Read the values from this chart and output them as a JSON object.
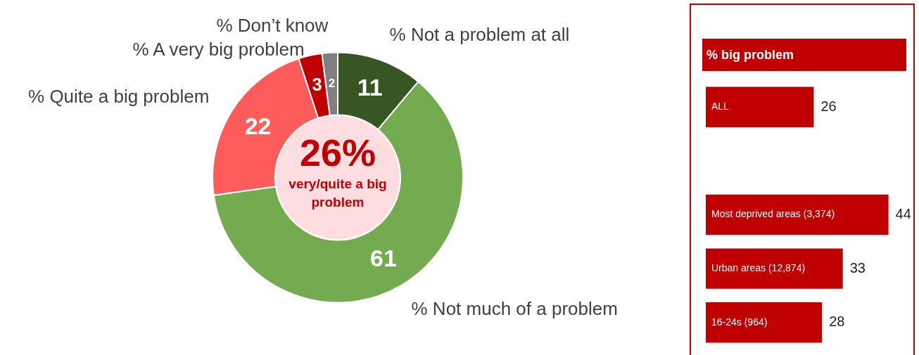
{
  "chart_data": [
    {
      "type": "donut",
      "categories": [
        "% Not a problem at all",
        "% Not much of a problem",
        "% Quite a big problem",
        "% A very big problem",
        "% Don’t know"
      ],
      "values": [
        11,
        61,
        22,
        3,
        2
      ],
      "colors": [
        "#375623",
        "#74ab50",
        "#ff5b5b",
        "#c00000",
        "#808080"
      ],
      "data_labels": true,
      "annotations": [
        "26%",
        "very/quite a big problem"
      ]
    },
    {
      "type": "bar",
      "orientation": "horizontal",
      "title": "% big problem",
      "categories": [
        "ALL",
        null,
        "Most deprived areas (3,374)",
        "Urban areas (12,874)",
        "16-24s (964)"
      ],
      "values": [
        26,
        null,
        44,
        33,
        28
      ],
      "color": "#c00000",
      "xlim": [
        0,
        50
      ],
      "data_labels": true
    }
  ]
}
